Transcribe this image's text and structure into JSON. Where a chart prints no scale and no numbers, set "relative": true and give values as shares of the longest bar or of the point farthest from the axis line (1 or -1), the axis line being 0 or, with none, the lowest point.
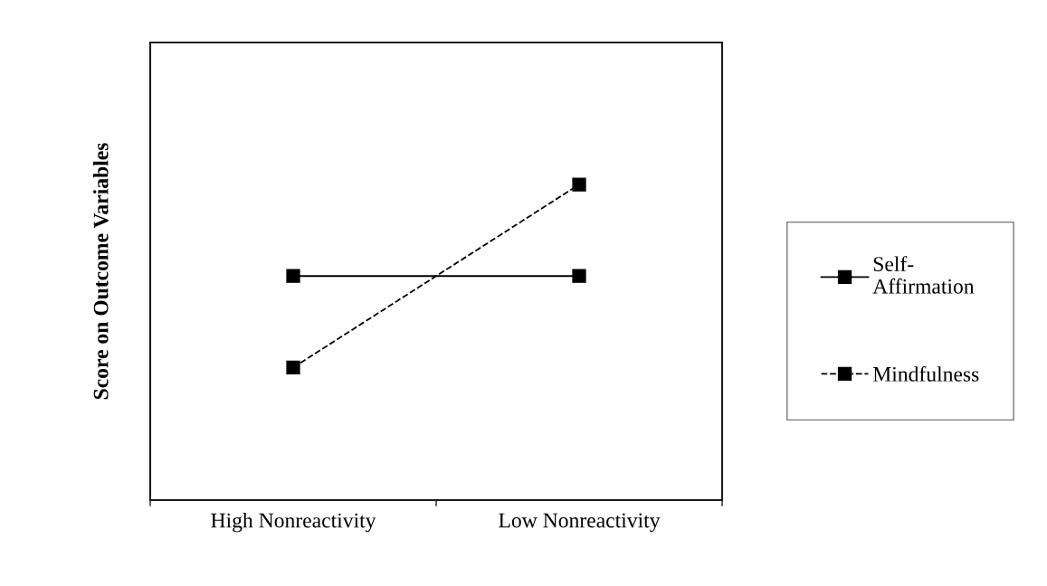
{
  "chart_data": {
    "type": "line",
    "ylabel": "Score on Outcome Variables",
    "relative": true,
    "categories": [
      "High Nonreactivity",
      "Low Nonreactivity"
    ],
    "series": [
      {
        "name": "Self-\nAffirmation",
        "color": "#000000",
        "values": [
          0.71,
          0.71
        ],
        "line_style": "solid"
      },
      {
        "name": "Mindfulness",
        "color": "#000000",
        "values": [
          0.42,
          1
        ],
        "line_style": "dashed"
      }
    ],
    "marker": "square",
    "legend": "right",
    "grid": false
  }
}
